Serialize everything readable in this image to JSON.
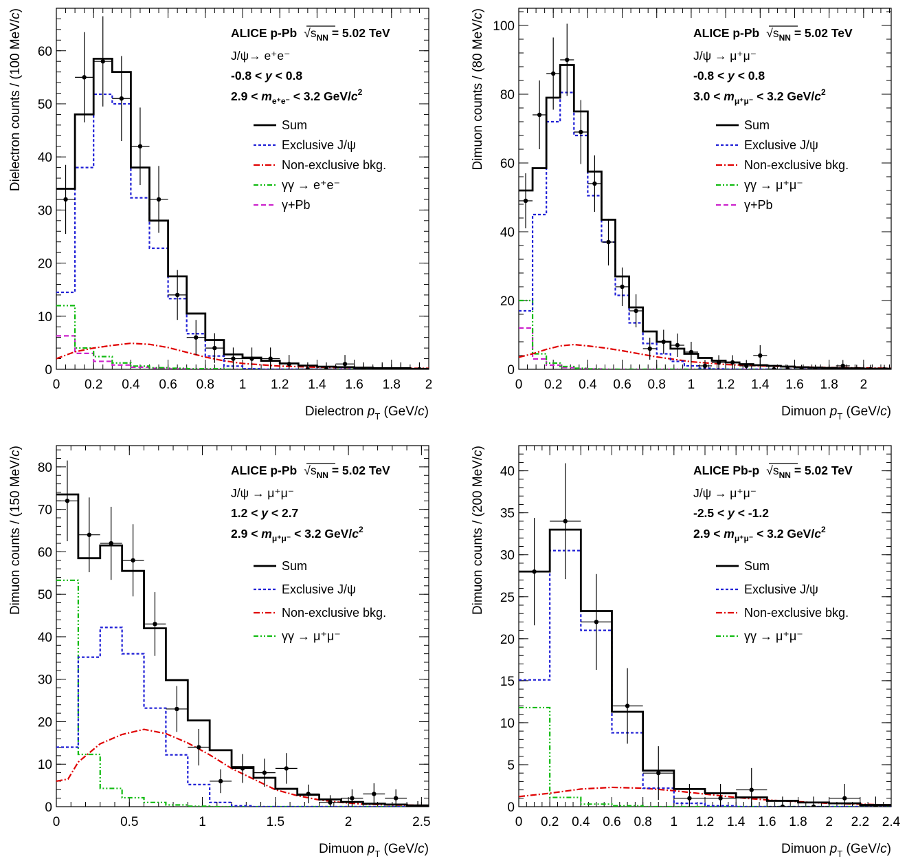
{
  "legend_labels": {
    "sum": "Sum",
    "excl": "Exclusive J/ψ",
    "nonexcl": "Non-exclusive bkg.",
    "gg_ee": "γγ → e⁺e⁻",
    "gg_mumu": "γγ → μ⁺μ⁻",
    "gpb": "γ+Pb"
  },
  "colors": {
    "sum": "#000000",
    "excl": "#1f1fd6",
    "nonexcl": "#e00000",
    "gg": "#11bb11",
    "gpb": "#cc22cc",
    "data": "#000000"
  },
  "chart_data": [
    {
      "type": "histogram",
      "text": {
        "l1a": "ALICE p-Pb",
        "l1b": "√s",
        "l1c": "NN",
        "l1d": " = 5.02 TeV",
        "l2": "J/ψ→ e⁺e⁻",
        "l3a": "-0.8 < ",
        "l3b": "y",
        "l3c": " < 0.8",
        "l4a": "2.9 < ",
        "l4b": "m",
        "l4c": "e⁺e⁻",
        "l4d": " < 3.2 GeV/",
        "l4e": "c",
        "l4f": "2"
      },
      "xlabel": {
        "a": "Dielectron ",
        "b": "p",
        "c": "T",
        "d": " (GeV/",
        "e": "c",
        "f": ")"
      },
      "ylabel": {
        "a": "Dielectron counts / (100 MeV/",
        "b": "c",
        "c": ")"
      },
      "xlim": [
        0,
        2
      ],
      "ylim": [
        0,
        68
      ],
      "xticks": [
        0,
        0.2,
        0.4,
        0.6,
        0.8,
        1,
        1.2,
        1.4,
        1.6,
        1.8,
        2
      ],
      "xtick_labels": [
        "0",
        "0.2",
        "0.4",
        "0.6",
        "0.8",
        "1",
        "1.2",
        "1.4",
        "1.6",
        "1.8",
        "2"
      ],
      "yticks": [
        0,
        10,
        20,
        30,
        40,
        50,
        60
      ],
      "ytick_labels": [
        "0",
        "10",
        "20",
        "30",
        "40",
        "50",
        "60"
      ],
      "bin_edges": [
        0,
        0.1,
        0.2,
        0.3,
        0.4,
        0.5,
        0.6,
        0.7,
        0.8,
        0.9,
        1.0,
        1.1,
        1.2,
        1.3,
        1.4,
        1.5,
        1.6,
        1.7,
        1.8,
        1.9,
        2.0
      ],
      "series": [
        {
          "key": "sum",
          "style": "step",
          "values": [
            34,
            48,
            58.5,
            56,
            38,
            28,
            17.5,
            10.5,
            5.5,
            2.8,
            2.2,
            1.6,
            1.1,
            0.7,
            0.5,
            0.4,
            0.3,
            0.2,
            0.2,
            0.1
          ]
        },
        {
          "key": "excl",
          "style": "step",
          "values": [
            14.5,
            38,
            51.8,
            50,
            32.3,
            22.8,
            13.3,
            6.7,
            2.5,
            0.6,
            0.1,
            0,
            0,
            0,
            0,
            0,
            0,
            0,
            0,
            0
          ]
        },
        {
          "key": "nonexcl",
          "style": "curve",
          "x": [
            0,
            0.1,
            0.2,
            0.3,
            0.4,
            0.5,
            0.6,
            0.7,
            0.8,
            0.9,
            1.0,
            1.2,
            1.4,
            1.6,
            1.8,
            2.0
          ],
          "values": [
            2.0,
            3.3,
            4.0,
            4.5,
            4.9,
            4.7,
            4.1,
            3.2,
            2.3,
            1.6,
            1.1,
            0.6,
            0.4,
            0.3,
            0.2,
            0.2
          ]
        },
        {
          "key": "gg",
          "style": "step",
          "values": [
            12,
            4,
            2.4,
            1.2,
            0.6,
            0.3,
            0.2,
            0.1,
            0.1,
            0,
            0,
            0,
            0,
            0,
            0,
            0,
            0,
            0,
            0,
            0
          ]
        },
        {
          "key": "gpb",
          "style": "step",
          "values": [
            6.3,
            3,
            1.5,
            0.8,
            0.4,
            0.2,
            0.1,
            0,
            0,
            0,
            0,
            0,
            0,
            0,
            0,
            0,
            0,
            0,
            0,
            0
          ]
        }
      ],
      "data_points": {
        "x": [
          0.05,
          0.15,
          0.25,
          0.35,
          0.45,
          0.55,
          0.65,
          0.75,
          0.85,
          0.95,
          1.05,
          1.15,
          1.25,
          1.35,
          1.45,
          1.55,
          1.65,
          1.75,
          1.85,
          1.95
        ],
        "y": [
          32,
          55,
          58,
          51,
          42,
          32,
          14,
          6,
          4,
          2,
          2,
          2,
          1,
          0,
          0,
          1,
          0,
          0,
          0,
          0
        ],
        "err": [
          6.5,
          8.5,
          8.5,
          8,
          7.3,
          6.3,
          4.7,
          3.3,
          2.8,
          2.1,
          2.1,
          2.1,
          1.7,
          1.3,
          1.3,
          1.7,
          1.3,
          1.3,
          1.3,
          1.3
        ],
        "xerr": 0.05
      },
      "legend": [
        "sum",
        "excl",
        "nonexcl",
        "gg_ee",
        "gpb"
      ]
    },
    {
      "type": "histogram",
      "text": {
        "l1a": "ALICE p-Pb",
        "l1b": "√s",
        "l1c": "NN",
        "l1d": " = 5.02 TeV",
        "l2": "J/ψ → μ⁺μ⁻",
        "l3a": "-0.8 < ",
        "l3b": "y",
        "l3c": " < 0.8",
        "l4a": "3.0 < ",
        "l4b": "m",
        "l4c": "μ⁺μ⁻",
        "l4d": " < 3.2 GeV/",
        "l4e": "c",
        "l4f": "2"
      },
      "xlabel": {
        "a": "Dimuon ",
        "b": "p",
        "c": "T",
        "d": " (GeV/",
        "e": "c",
        "f": ")"
      },
      "ylabel": {
        "a": "Dimuon counts / (80 MeV/",
        "b": "c",
        "c": ")"
      },
      "xlim": [
        0,
        2.16
      ],
      "ylim": [
        0,
        105
      ],
      "xticks": [
        0,
        0.2,
        0.4,
        0.6,
        0.8,
        1,
        1.2,
        1.4,
        1.6,
        1.8,
        2
      ],
      "xtick_labels": [
        "0",
        "0.2",
        "0.4",
        "0.6",
        "0.8",
        "1",
        "1.2",
        "1.4",
        "1.6",
        "1.8",
        "2"
      ],
      "yticks": [
        0,
        20,
        40,
        60,
        80,
        100
      ],
      "ytick_labels": [
        "0",
        "20",
        "40",
        "60",
        "80",
        "100"
      ],
      "bin_edges": [
        0,
        0.08,
        0.16,
        0.24,
        0.32,
        0.4,
        0.48,
        0.56,
        0.64,
        0.72,
        0.8,
        0.88,
        0.96,
        1.04,
        1.12,
        1.2,
        1.28,
        1.36,
        1.44,
        1.52,
        1.6,
        1.68,
        1.76,
        1.84,
        1.92,
        2.0,
        2.08,
        2.16
      ],
      "series": [
        {
          "key": "sum",
          "style": "step",
          "values": [
            52,
            58.5,
            79,
            88.5,
            75,
            57.5,
            43.5,
            27,
            18,
            11,
            8,
            6,
            4.5,
            3.3,
            2.5,
            2,
            1.5,
            1.2,
            1,
            0.8,
            0.6,
            0.5,
            0.4,
            0.3,
            0.3,
            0.2,
            0.2
          ]
        },
        {
          "key": "excl",
          "style": "step",
          "values": [
            17,
            45,
            72,
            80.5,
            68,
            50.5,
            37,
            21.5,
            13.5,
            7.5,
            4.5,
            2.3,
            1,
            0.3,
            0.1,
            0,
            0,
            0,
            0,
            0,
            0,
            0,
            0,
            0,
            0,
            0,
            0
          ]
        },
        {
          "key": "nonexcl",
          "style": "curve",
          "x": [
            0,
            0.08,
            0.16,
            0.24,
            0.32,
            0.4,
            0.5,
            0.6,
            0.7,
            0.8,
            0.9,
            1.0,
            1.1,
            1.2,
            1.4,
            1.6,
            1.8,
            2.0,
            2.16
          ],
          "values": [
            3.5,
            4.5,
            5.8,
            6.8,
            7.2,
            6.8,
            6.2,
            5.4,
            4.5,
            3.6,
            2.9,
            2.2,
            1.8,
            1.4,
            1.0,
            0.7,
            0.5,
            0.4,
            0.3
          ]
        },
        {
          "key": "gg",
          "style": "step",
          "values": [
            20,
            4.5,
            1.8,
            0.8,
            0.3,
            0.1,
            0,
            0,
            0,
            0,
            0,
            0,
            0,
            0,
            0,
            0,
            0,
            0,
            0,
            0,
            0,
            0,
            0,
            0,
            0,
            0,
            0
          ]
        },
        {
          "key": "gpb",
          "style": "step",
          "values": [
            12,
            3,
            1.2,
            0.5,
            0.2,
            0.1,
            0,
            0,
            0,
            0,
            0,
            0,
            0,
            0,
            0,
            0,
            0,
            0,
            0,
            0,
            0,
            0,
            0,
            0,
            0,
            0,
            0
          ]
        }
      ],
      "data_points": {
        "x": [
          0.04,
          0.12,
          0.2,
          0.28,
          0.36,
          0.44,
          0.52,
          0.6,
          0.68,
          0.76,
          0.84,
          0.92,
          1.0,
          1.08,
          1.16,
          1.24,
          1.32,
          1.4,
          1.48,
          1.56,
          1.64,
          1.72,
          1.8,
          1.88,
          1.96,
          2.04,
          2.12
        ],
        "y": [
          49,
          74,
          86,
          90,
          69,
          54,
          37,
          24,
          17,
          6,
          8,
          7,
          5,
          1,
          2,
          2,
          1,
          4,
          0,
          0,
          0,
          0,
          0,
          1,
          0,
          0,
          0
        ],
        "err": [
          8,
          10,
          10.5,
          10.5,
          9.3,
          8.2,
          6.8,
          5.6,
          4.8,
          3.2,
          3.5,
          3.4,
          3.0,
          1.7,
          2.1,
          2.1,
          1.7,
          3.0,
          1.3,
          1.3,
          1.3,
          1.3,
          1.3,
          1.7,
          1.3,
          1.3,
          1.3
        ],
        "xerr": 0.04
      },
      "legend": [
        "sum",
        "excl",
        "nonexcl",
        "gg_mumu",
        "gpb"
      ]
    },
    {
      "type": "histogram",
      "text": {
        "l1a": "ALICE p-Pb",
        "l1b": "√s",
        "l1c": "NN",
        "l1d": " = 5.02 TeV",
        "l2": "J/ψ → μ⁺μ⁻",
        "l3a": "1.2 < ",
        "l3b": "y",
        "l3c": " < 2.7",
        "l4a": "2.9 < ",
        "l4b": "m",
        "l4c": "μ⁺μ⁻",
        "l4d": " < 3.2 GeV/",
        "l4e": "c",
        "l4f": "2"
      },
      "xlabel": {
        "a": "Dimuon ",
        "b": "p",
        "c": "T",
        "d": " (GeV/",
        "e": "c",
        "f": ")"
      },
      "ylabel": {
        "a": "Dimuon counts / (150 MeV/",
        "b": "c",
        "c": ")"
      },
      "xlim": [
        0,
        2.55
      ],
      "ylim": [
        0,
        85
      ],
      "xticks": [
        0,
        0.5,
        1,
        1.5,
        2,
        2.5
      ],
      "xtick_labels": [
        "0",
        "0.5",
        "1",
        "1.5",
        "2",
        "2.5"
      ],
      "yticks": [
        0,
        10,
        20,
        30,
        40,
        50,
        60,
        70,
        80
      ],
      "ytick_labels": [
        "0",
        "10",
        "20",
        "30",
        "40",
        "50",
        "60",
        "70",
        "80"
      ],
      "bin_edges": [
        0,
        0.15,
        0.3,
        0.45,
        0.6,
        0.75,
        0.9,
        1.05,
        1.2,
        1.35,
        1.5,
        1.65,
        1.8,
        1.95,
        2.1,
        2.25,
        2.4,
        2.55
      ],
      "series": [
        {
          "key": "sum",
          "style": "step",
          "values": [
            73.5,
            58.5,
            61.5,
            55.5,
            42,
            29.8,
            20.3,
            13.3,
            9.3,
            6.8,
            4.2,
            2.8,
            1.7,
            1.1,
            0.7,
            0.5,
            0.3
          ]
        },
        {
          "key": "excl",
          "style": "step",
          "values": [
            14,
            35.2,
            42.2,
            36,
            23.2,
            12.2,
            5.2,
            1,
            0.2,
            0,
            0,
            0,
            0,
            0,
            0,
            0,
            0
          ]
        },
        {
          "key": "nonexcl",
          "style": "curve",
          "x": [
            0,
            0.08,
            0.15,
            0.3,
            0.45,
            0.6,
            0.75,
            0.9,
            1.05,
            1.2,
            1.35,
            1.5,
            1.65,
            1.8,
            1.95,
            2.1,
            2.3,
            2.55
          ],
          "values": [
            6,
            6.5,
            10.5,
            14.8,
            17,
            18.2,
            17.2,
            15,
            12.2,
            9,
            6.5,
            4,
            2.6,
            1.6,
            1.0,
            0.6,
            0.4,
            0.3
          ]
        },
        {
          "key": "gg",
          "style": "step",
          "values": [
            53.3,
            12.3,
            4.3,
            2.1,
            1,
            0.4,
            0.1,
            0,
            0,
            0,
            0,
            0,
            0,
            0,
            0,
            0,
            0
          ]
        }
      ],
      "data_points": {
        "x": [
          0.075,
          0.225,
          0.375,
          0.525,
          0.675,
          0.825,
          0.975,
          1.125,
          1.275,
          1.425,
          1.575,
          1.725,
          1.875,
          2.025,
          2.175,
          2.325,
          2.475
        ],
        "y": [
          72,
          64,
          62,
          58,
          43,
          23,
          14,
          6,
          9,
          8,
          9,
          3,
          1,
          2,
          3,
          2,
          0
        ],
        "err": [
          9.5,
          8.8,
          8.6,
          8.5,
          7.5,
          5.4,
          4.3,
          2.8,
          3.4,
          3.3,
          3.6,
          2.2,
          1.7,
          2.1,
          2.5,
          2.1,
          1.3
        ],
        "xerr": 0.075
      },
      "legend": [
        "sum",
        "excl",
        "nonexcl",
        "gg_mumu"
      ]
    },
    {
      "type": "histogram",
      "text": {
        "l1a": "ALICE Pb-p",
        "l1b": "√s",
        "l1c": "NN",
        "l1d": " = 5.02 TeV",
        "l2": "J/ψ → μ⁺μ⁻",
        "l3a": "-2.5 < ",
        "l3b": "y",
        "l3c": " < -1.2",
        "l4a": "2.9 < ",
        "l4b": "m",
        "l4c": "μ⁺μ⁻",
        "l4d": " < 3.2 GeV/",
        "l4e": "c",
        "l4f": "2"
      },
      "xlabel": {
        "a": "Dimuon ",
        "b": "p",
        "c": "T",
        "d": " (GeV/",
        "e": "c",
        "f": ")"
      },
      "ylabel": {
        "a": "Dimuon counts / (200 MeV/",
        "b": "c",
        "c": ")"
      },
      "xlim": [
        0,
        2.4
      ],
      "ylim": [
        0,
        43
      ],
      "xticks": [
        0,
        0.2,
        0.4,
        0.6,
        0.8,
        1,
        1.2,
        1.4,
        1.6,
        1.8,
        2,
        2.2,
        2.4
      ],
      "xtick_labels": [
        "0",
        "0.2",
        "0.4",
        "0.6",
        "0.8",
        "1",
        "1.2",
        "1.4",
        "1.6",
        "1.8",
        "2",
        "2.2",
        "2.4"
      ],
      "yticks": [
        0,
        5,
        10,
        15,
        20,
        25,
        30,
        35,
        40
      ],
      "ytick_labels": [
        "0",
        "5",
        "10",
        "15",
        "20",
        "25",
        "30",
        "35",
        "40"
      ],
      "bin_edges": [
        0,
        0.2,
        0.4,
        0.6,
        0.8,
        1.0,
        1.2,
        1.4,
        1.6,
        1.8,
        2.0,
        2.2,
        2.4
      ],
      "series": [
        {
          "key": "sum",
          "style": "step",
          "values": [
            28,
            33,
            23.3,
            11.3,
            4.3,
            2.1,
            1.6,
            1.1,
            0.7,
            0.5,
            0.4,
            0.2
          ]
        },
        {
          "key": "excl",
          "style": "step",
          "values": [
            15.1,
            30.5,
            21,
            8.8,
            2.2,
            0.4,
            0.1,
            0,
            0,
            0,
            0,
            0
          ]
        },
        {
          "key": "nonexcl",
          "style": "curve",
          "x": [
            0,
            0.2,
            0.4,
            0.6,
            0.8,
            1.0,
            1.2,
            1.4,
            1.6,
            1.8,
            2.0,
            2.2,
            2.4
          ],
          "values": [
            1.2,
            1.6,
            2.1,
            2.3,
            2.2,
            1.9,
            1.5,
            1.1,
            0.8,
            0.6,
            0.4,
            0.3,
            0.2
          ]
        },
        {
          "key": "gg",
          "style": "step",
          "values": [
            11.8,
            1.1,
            0.3,
            0.1,
            0,
            0,
            0,
            0,
            0,
            0,
            0,
            0
          ]
        }
      ],
      "data_points": {
        "x": [
          0.1,
          0.3,
          0.5,
          0.7,
          0.9,
          1.1,
          1.3,
          1.5,
          1.7,
          1.9,
          2.1,
          2.3
        ],
        "y": [
          28,
          34,
          22,
          12,
          4,
          1,
          1,
          2,
          0,
          0,
          1,
          0
        ],
        "err": [
          6.4,
          6.9,
          5.7,
          4.5,
          3.2,
          1.7,
          1.7,
          2.6,
          1.2,
          1.2,
          1.7,
          1.2
        ],
        "xerr": 0.1
      },
      "legend": [
        "sum",
        "excl",
        "nonexcl",
        "gg_mumu"
      ]
    }
  ]
}
